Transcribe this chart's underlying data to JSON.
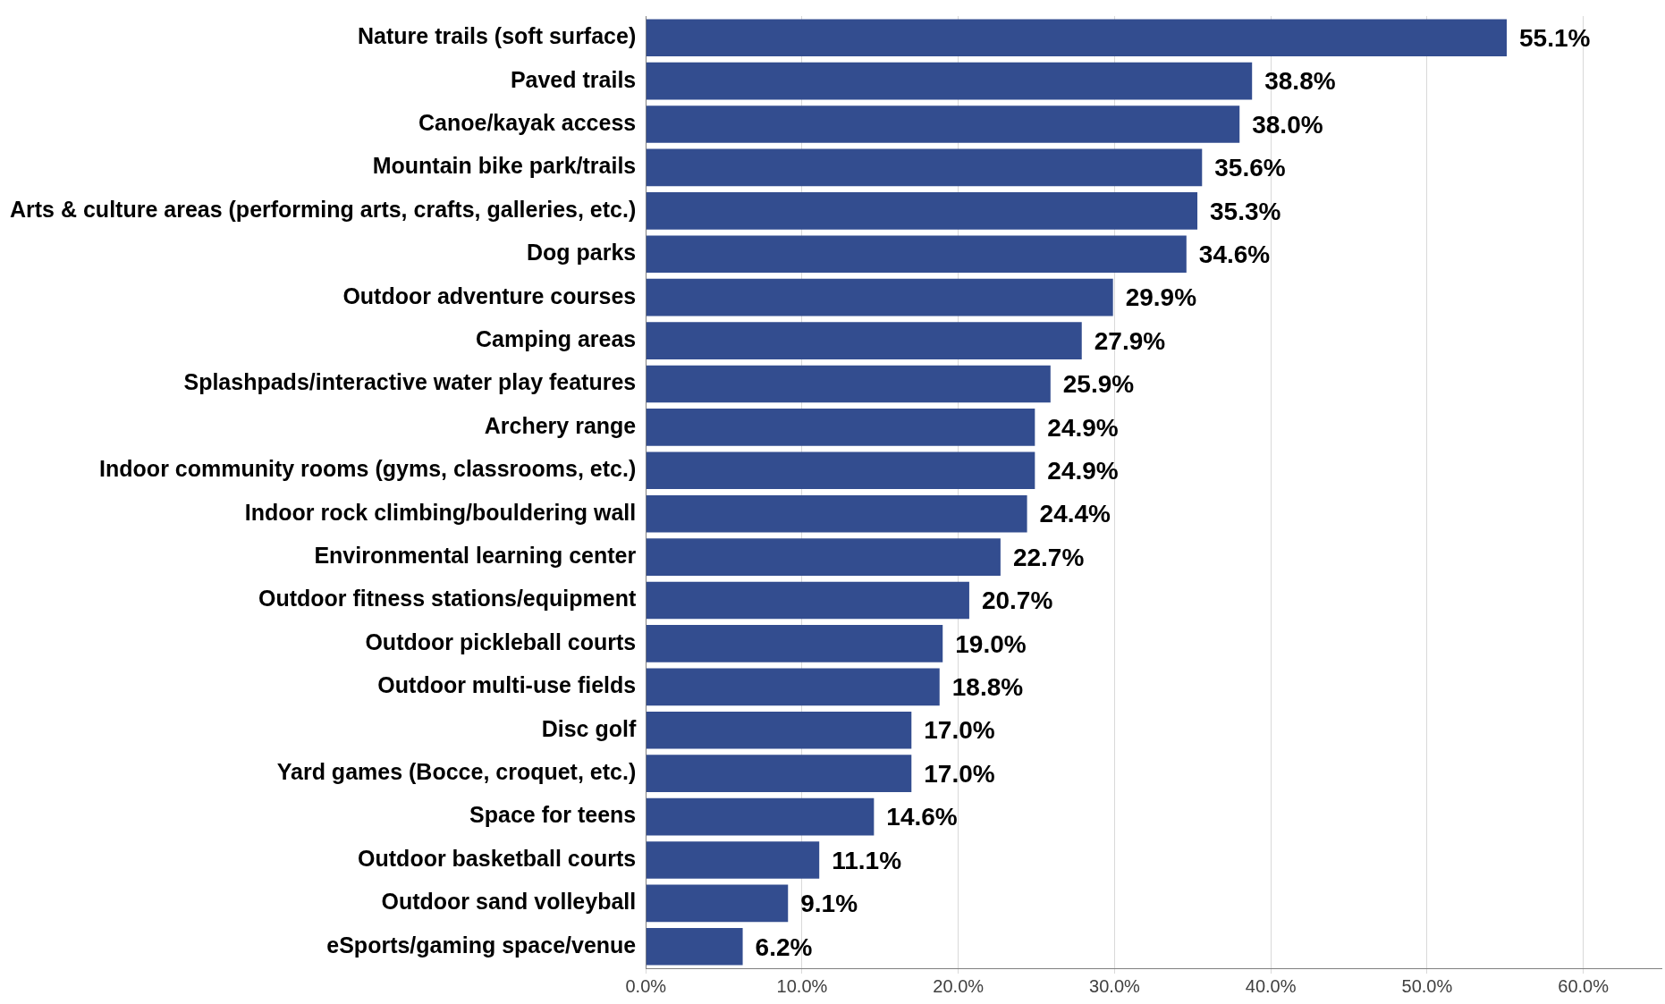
{
  "chart_data": {
    "type": "bar",
    "orientation": "horizontal",
    "categories": [
      "Nature trails (soft surface)",
      "Paved trails",
      "Canoe/kayak access",
      "Mountain bike park/trails",
      "Arts & culture areas (performing arts, crafts, galleries, etc.)",
      "Dog parks",
      "Outdoor adventure courses",
      "Camping areas",
      "Splashpads/interactive water play features",
      "Archery range",
      "Indoor community rooms (gyms, classrooms, etc.)",
      "Indoor rock climbing/bouldering wall",
      "Environmental learning center",
      "Outdoor fitness stations/equipment",
      "Outdoor pickleball courts",
      "Outdoor multi-use fields",
      "Disc golf",
      "Yard games (Bocce, croquet, etc.)",
      "Space for teens",
      "Outdoor basketball courts",
      "Outdoor sand volleyball",
      "eSports/gaming space/venue"
    ],
    "values": [
      55.1,
      38.8,
      38.0,
      35.6,
      35.3,
      34.6,
      29.9,
      27.9,
      25.9,
      24.9,
      24.9,
      24.4,
      22.7,
      20.7,
      19.0,
      18.8,
      17.0,
      17.0,
      14.6,
      11.1,
      9.1,
      6.2
    ],
    "value_labels": [
      "55.1%",
      "38.8%",
      "38.0%",
      "35.6%",
      "35.3%",
      "34.6%",
      "29.9%",
      "27.9%",
      "25.9%",
      "24.9%",
      "24.9%",
      "24.4%",
      "22.7%",
      "20.7%",
      "19.0%",
      "18.8%",
      "17.0%",
      "17.0%",
      "14.6%",
      "11.1%",
      "9.1%",
      "6.2%"
    ],
    "color": "#334d8f",
    "xlim": [
      0,
      65
    ],
    "xticks": [
      {
        "value": 0,
        "label": "0.0%"
      },
      {
        "value": 10,
        "label": "10.0%"
      },
      {
        "value": 20,
        "label": "20.0%"
      },
      {
        "value": 30,
        "label": "30.0%"
      },
      {
        "value": 40,
        "label": "40.0%"
      },
      {
        "value": 50,
        "label": "50.0%"
      },
      {
        "value": 60,
        "label": "60.0%"
      }
    ],
    "grid": "x",
    "legend": false
  }
}
